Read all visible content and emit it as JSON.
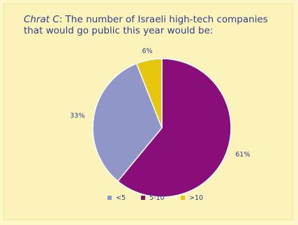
{
  "chart_data": {
    "type": "pie",
    "title_prefix": "Chrat C",
    "title_rest": ": The number of Israeli high-tech companies that would go public this year would be:",
    "categories": [
      "<5",
      "5-10",
      ">10"
    ],
    "values": [
      33,
      61,
      6
    ],
    "labels": [
      "33%",
      "61%",
      "6%"
    ],
    "colors": [
      "#9196c9",
      "#8a0e7a",
      "#e7c70e"
    ],
    "legend_position": "bottom"
  }
}
